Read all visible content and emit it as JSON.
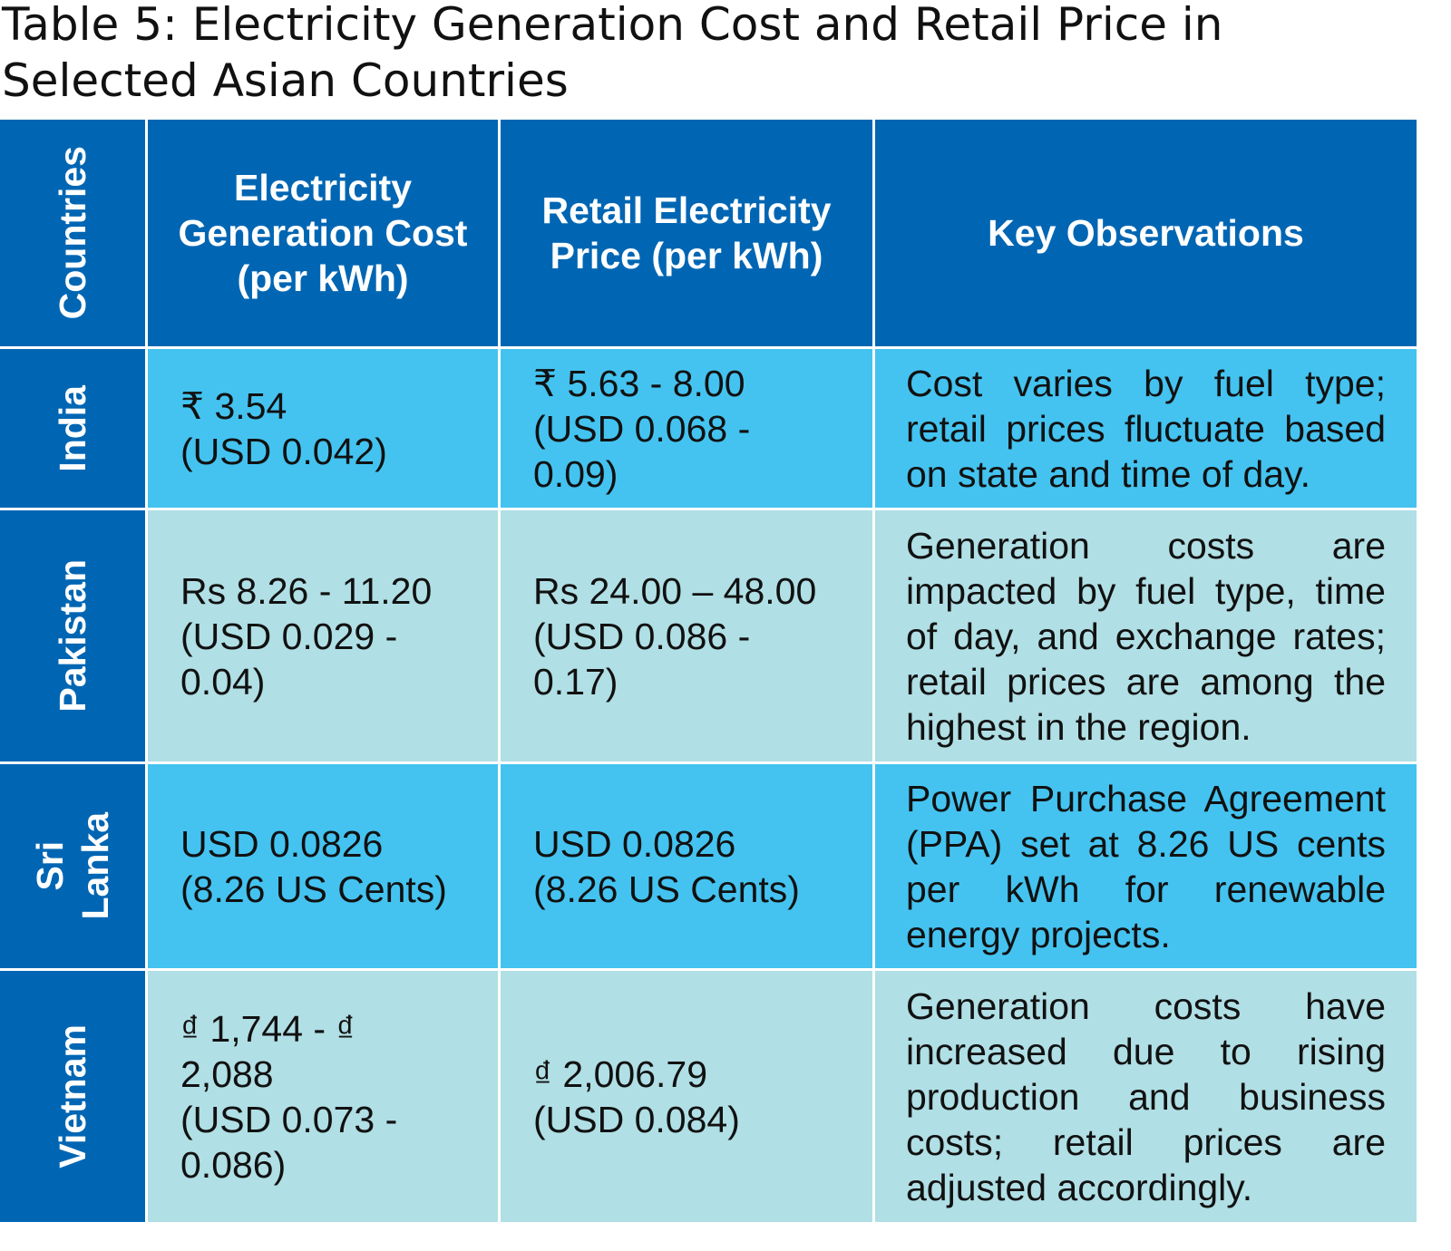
{
  "title": "Table 5: Electricity Generation Cost and Retail Price in Selected Asian Countries",
  "headers": {
    "country": "Countries",
    "generation_cost": "Electricity Generation Cost (per kWh)",
    "retail_price": "Retail Electricity Price (per kWh)",
    "observations": "Key Observations"
  },
  "rows": [
    {
      "country": "India",
      "generation_cost": "₹ 3.54\n(USD 0.042)",
      "retail_price": "₹ 5.63 - 8.00\n(USD 0.068 -\n 0.09)",
      "observations": "Cost varies by fuel type; retail prices fluctuate based on state and time of day."
    },
    {
      "country": "Pakistan",
      "generation_cost": "Rs 8.26 - 11.20\n(USD 0.029 -\n0.04)",
      "retail_price": "Rs 24.00 – 48.00\n(USD 0.086 -\n0.17)",
      "observations": "Generation costs are impacted by fuel type, time of day, and exchange rates; retail prices are among the highest in the region."
    },
    {
      "country": "Sri\nLanka",
      "generation_cost": "USD 0.0826\n(8.26 US Cents)",
      "retail_price": "USD 0.0826\n(8.26 US Cents)",
      "observations": "Power Purchase Agreement (PPA) set at 8.26 US cents per kWh for renewable energy projects."
    },
    {
      "country": "Vietnam",
      "generation_cost": "₫ 1,744 - ₫\n2,088\n(USD 0.073 -\n0.086)",
      "retail_price": "₫ 2,006.79\n(USD 0.084)",
      "observations": "Generation costs have increased due to rising production and business costs; retail prices are adjusted accordingly."
    }
  ]
}
